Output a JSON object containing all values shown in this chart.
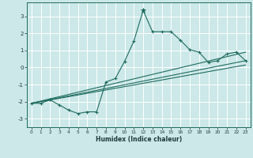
{
  "xlabel": "Humidex (Indice chaleur)",
  "xlim": [
    -0.5,
    23.5
  ],
  "ylim": [
    -3.5,
    3.8
  ],
  "yticks": [
    -3,
    -2,
    -1,
    0,
    1,
    2,
    3
  ],
  "xticks": [
    0,
    1,
    2,
    3,
    4,
    5,
    6,
    7,
    8,
    9,
    10,
    11,
    12,
    13,
    14,
    15,
    16,
    17,
    18,
    19,
    20,
    21,
    22,
    23
  ],
  "bg_color": "#cce8e8",
  "grid_color": "#ffffff",
  "line_color": "#1e6b5e",
  "series1_x": [
    0,
    1,
    2,
    3,
    4,
    5,
    6,
    7,
    8,
    9,
    10,
    11,
    12,
    13,
    14,
    15,
    16,
    17,
    18,
    19,
    20,
    21,
    22,
    23
  ],
  "series1_y": [
    -2.1,
    -2.1,
    -1.9,
    -2.2,
    -2.5,
    -2.7,
    -2.6,
    -2.6,
    -0.85,
    -0.65,
    0.35,
    1.55,
    3.35,
    2.1,
    2.1,
    2.1,
    1.6,
    1.05,
    0.9,
    0.3,
    0.4,
    0.8,
    0.9,
    0.4
  ],
  "peak_x": 12,
  "peak_y": 3.35,
  "line2_x": [
    0,
    23
  ],
  "line2_y": [
    -2.1,
    0.9
  ],
  "line3_x": [
    0,
    23
  ],
  "line3_y": [
    -2.1,
    0.4
  ],
  "line4_x": [
    0,
    23
  ],
  "line4_y": [
    -2.1,
    0.15
  ]
}
